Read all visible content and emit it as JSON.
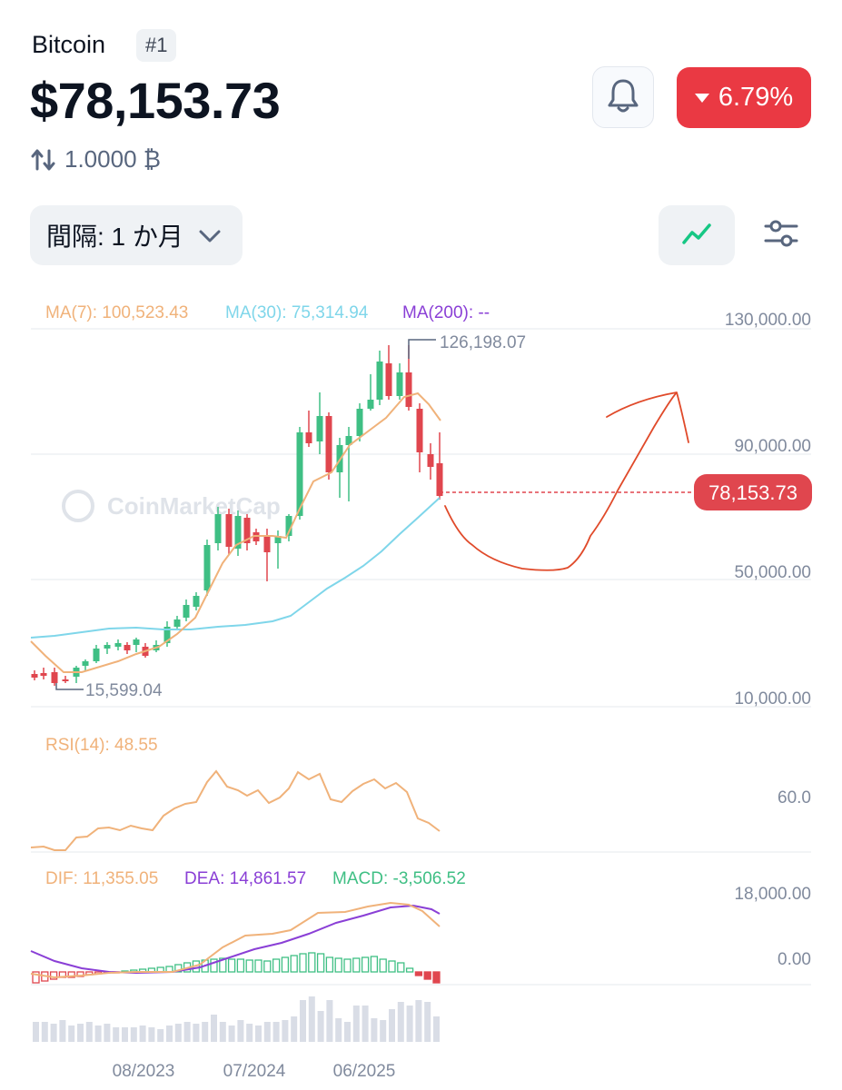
{
  "header": {
    "coin_name": "Bitcoin",
    "rank": "#1",
    "price": "$78,153.73",
    "btc_amount": "1.0000 ₿",
    "change_percent": "6.79%",
    "change_direction": "down",
    "change_color": "#ea3943"
  },
  "controls": {
    "interval_label": "間隔: 1 か月",
    "line_chart_icon": "line-chart-icon",
    "settings_icon": "sliders-icon",
    "bell_icon": "bell-icon"
  },
  "chart_data": {
    "type": "candlestick",
    "watermark": "CoinMarketCap",
    "ma_legend": {
      "ma7": "MA(7): 100,523.43",
      "ma30": "MA(30): 75,314.94",
      "ma200": "MA(200): --"
    },
    "price_axis_ticks": [
      "130,000.00",
      "90,000.00",
      "50,000.00",
      "10,000.00"
    ],
    "x_axis_ticks": [
      "08/2023",
      "07/2024",
      "06/2025"
    ],
    "high_label": "126,198.07",
    "low_label": "15,599.04",
    "current_price_label": "78,153.73",
    "colors": {
      "up": "#3fbf84",
      "down": "#e0464e",
      "ma7": "#f0b27a",
      "ma30": "#7fd6ea",
      "dif": "#f0b27a",
      "dea": "#8a3fd6"
    },
    "rsi_legend": "RSI(14): 48.55",
    "rsi_tick": "60.0",
    "macd_legend": {
      "dif": "DIF: 11,355.05",
      "dea": "DEA: 14,861.57",
      "macd": "MACD: -3,506.52"
    },
    "macd_ticks": [
      "18,000.00",
      "0.00"
    ]
  }
}
